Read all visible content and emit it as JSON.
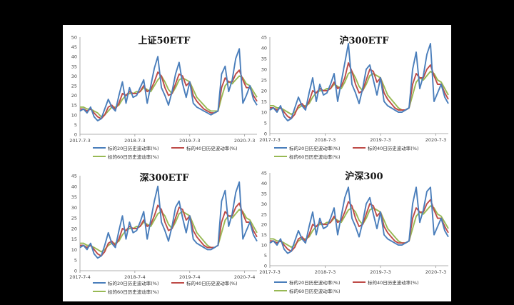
{
  "chart_data": [
    {
      "type": "line",
      "title": "上证50ETF",
      "yticks": [
        "0",
        "5",
        "10",
        "15",
        "20",
        "25",
        "30",
        "35",
        "40",
        "45",
        "50"
      ],
      "ylim": [
        0,
        50
      ],
      "xticks": [
        "2017-7-3",
        "2018-7-3",
        "2019-7-3",
        "2020-7-3"
      ],
      "legend": [
        "标的20日历史波动率(%)",
        "标的40日历史波动率(%)",
        "标的60日历史波动率(%)"
      ],
      "colors": [
        "#4a7ebb",
        "#be4b48",
        "#98b954"
      ],
      "series": [
        {
          "name": "标的20日历史波动率(%)",
          "values": [
            12,
            13,
            11,
            14,
            9,
            7,
            8,
            13,
            18,
            14,
            12,
            20,
            27,
            16,
            24,
            19,
            20,
            24,
            28,
            16,
            25,
            34,
            40,
            24,
            20,
            15,
            22,
            31,
            37,
            26,
            19,
            27,
            16,
            14,
            13,
            12,
            11,
            10,
            11,
            12,
            31,
            35,
            22,
            28,
            39,
            44,
            16,
            20,
            25,
            18,
            15
          ]
        },
        {
          "name": "标的40日历史波动率(%)",
          "values": [
            13,
            13,
            12,
            13,
            11,
            9,
            8,
            10,
            14,
            15,
            13,
            16,
            21,
            20,
            22,
            21,
            21,
            22,
            25,
            22,
            23,
            27,
            32,
            30,
            24,
            20,
            21,
            26,
            31,
            30,
            25,
            27,
            20,
            17,
            15,
            13,
            12,
            11,
            11,
            12,
            24,
            29,
            27,
            27,
            31,
            33,
            28,
            24,
            24,
            20,
            17
          ]
        },
        {
          "name": "标的60日历史波动率(%)",
          "values": [
            14,
            14,
            13,
            13,
            12,
            11,
            9,
            10,
            12,
            14,
            14,
            15,
            18,
            20,
            21,
            21,
            22,
            22,
            24,
            23,
            22,
            25,
            28,
            30,
            27,
            23,
            21,
            24,
            28,
            29,
            28,
            27,
            23,
            19,
            17,
            15,
            13,
            12,
            12,
            12,
            19,
            25,
            27,
            26,
            28,
            30,
            29,
            26,
            25,
            22,
            19
          ]
        }
      ]
    },
    {
      "type": "line",
      "title": "沪300ETF",
      "yticks": [
        "0",
        "5",
        "10",
        "15",
        "20",
        "25",
        "30",
        "35",
        "40",
        "45"
      ],
      "ylim": [
        0,
        45
      ],
      "xticks": [
        "2017-7-3",
        "2018-7-3",
        "2019-7-3",
        "2020-7-3"
      ],
      "legend": [
        "标的20日历史波动率(%)",
        "标的40日历史波动率(%)",
        "标的60日历史波动率(%)"
      ],
      "colors": [
        "#4a7ebb",
        "#be4b48",
        "#98b954"
      ],
      "series": [
        {
          "name": "标的20日历史波动率(%)",
          "values": [
            11,
            12,
            10,
            13,
            8,
            6,
            7,
            12,
            17,
            13,
            11,
            19,
            26,
            15,
            23,
            18,
            19,
            23,
            28,
            15,
            24,
            33,
            42,
            23,
            19,
            14,
            21,
            30,
            32,
            25,
            18,
            26,
            15,
            13,
            12,
            11,
            10,
            10,
            11,
            12,
            30,
            38,
            21,
            27,
            37,
            42,
            15,
            19,
            23,
            17,
            14
          ]
        },
        {
          "name": "标的40日历史波动率(%)",
          "values": [
            12,
            12,
            11,
            12,
            10,
            8,
            7,
            9,
            13,
            14,
            12,
            15,
            20,
            19,
            21,
            20,
            20,
            21,
            24,
            21,
            22,
            26,
            33,
            29,
            23,
            19,
            20,
            25,
            30,
            29,
            24,
            26,
            19,
            16,
            14,
            12,
            11,
            11,
            11,
            12,
            23,
            28,
            26,
            26,
            30,
            32,
            27,
            23,
            23,
            19,
            16
          ]
        },
        {
          "name": "标的60日历史波动率(%)",
          "values": [
            13,
            13,
            12,
            12,
            11,
            10,
            9,
            10,
            12,
            13,
            13,
            14,
            17,
            19,
            20,
            20,
            21,
            21,
            23,
            22,
            21,
            24,
            28,
            29,
            26,
            22,
            20,
            23,
            27,
            28,
            27,
            26,
            22,
            18,
            16,
            14,
            12,
            11,
            11,
            12,
            18,
            24,
            26,
            25,
            27,
            29,
            28,
            25,
            24,
            21,
            18
          ]
        }
      ]
    },
    {
      "type": "line",
      "title": "深300ETF",
      "yticks": [
        "0",
        "5",
        "10",
        "15",
        "20",
        "25",
        "30",
        "35",
        "40",
        "45"
      ],
      "ylim": [
        0,
        45
      ],
      "xticks": [
        "2017-7-4",
        "2018-7-4",
        "2019-7-4",
        "2020-7-4"
      ],
      "legend": [
        "标的20日历史波动率(%)",
        "标的40日历史波动率(%)",
        "标的60日历史波动率(%)"
      ],
      "colors": [
        "#4a7ebb",
        "#be4b48",
        "#98b954"
      ],
      "series": [
        {
          "name": "标的20日历史波动率(%)",
          "values": [
            11,
            12,
            10,
            13,
            8,
            6,
            7,
            12,
            18,
            13,
            11,
            19,
            26,
            15,
            23,
            18,
            19,
            23,
            28,
            15,
            24,
            33,
            40,
            23,
            19,
            14,
            21,
            30,
            33,
            25,
            18,
            26,
            15,
            13,
            12,
            11,
            10,
            10,
            11,
            12,
            33,
            38,
            21,
            27,
            37,
            42,
            15,
            19,
            23,
            17,
            14
          ]
        },
        {
          "name": "标的40日历史波动率(%)",
          "values": [
            12,
            12,
            11,
            12,
            10,
            8,
            7,
            9,
            13,
            14,
            12,
            15,
            20,
            19,
            21,
            20,
            20,
            21,
            24,
            21,
            22,
            26,
            31,
            29,
            23,
            19,
            20,
            25,
            30,
            29,
            24,
            26,
            19,
            16,
            14,
            12,
            11,
            11,
            11,
            12,
            23,
            28,
            26,
            26,
            30,
            32,
            27,
            23,
            23,
            19,
            16
          ]
        },
        {
          "name": "标的60日历史波动率(%)",
          "values": [
            13,
            13,
            12,
            12,
            11,
            10,
            9,
            10,
            12,
            13,
            13,
            14,
            17,
            19,
            20,
            20,
            21,
            21,
            23,
            22,
            21,
            24,
            27,
            28,
            26,
            22,
            20,
            23,
            27,
            28,
            27,
            26,
            22,
            18,
            16,
            14,
            12,
            11,
            11,
            12,
            18,
            24,
            26,
            25,
            27,
            29,
            28,
            25,
            24,
            21,
            18
          ]
        }
      ]
    },
    {
      "type": "line",
      "title": "沪深300",
      "yticks": [
        "0",
        "5",
        "10",
        "15",
        "20",
        "25",
        "30",
        "35",
        "40",
        "45"
      ],
      "ylim": [
        0,
        45
      ],
      "xticks": [
        "2017-7-3",
        "2018-7-3",
        "2019-7-3",
        "2020-7-3"
      ],
      "legend": [
        "标的20日历史波动率(%)",
        "标的40日历史波动率(%)",
        "标的60日历史波动率(%)"
      ],
      "colors": [
        "#4a7ebb",
        "#be4b48",
        "#98b954"
      ],
      "series": [
        {
          "name": "标的20日历史波动率(%)",
          "values": [
            11,
            12,
            10,
            13,
            8,
            6,
            7,
            12,
            17,
            13,
            11,
            19,
            26,
            15,
            23,
            18,
            19,
            23,
            28,
            15,
            24,
            33,
            38,
            23,
            19,
            14,
            21,
            30,
            33,
            25,
            18,
            26,
            15,
            13,
            12,
            11,
            10,
            10,
            11,
            12,
            30,
            38,
            21,
            27,
            36,
            38,
            15,
            19,
            23,
            17,
            14
          ]
        },
        {
          "name": "标的40日历史波动率(%)",
          "values": [
            12,
            12,
            11,
            12,
            10,
            8,
            7,
            9,
            13,
            14,
            12,
            15,
            20,
            19,
            21,
            20,
            20,
            21,
            24,
            21,
            22,
            26,
            31,
            29,
            23,
            19,
            20,
            25,
            30,
            29,
            24,
            26,
            19,
            16,
            14,
            12,
            11,
            11,
            11,
            12,
            23,
            28,
            26,
            26,
            30,
            32,
            27,
            23,
            23,
            19,
            16
          ]
        },
        {
          "name": "标的60日历史波动率(%)",
          "values": [
            13,
            13,
            12,
            12,
            11,
            10,
            9,
            10,
            12,
            13,
            13,
            14,
            17,
            19,
            20,
            20,
            21,
            21,
            23,
            22,
            21,
            24,
            27,
            28,
            26,
            22,
            20,
            23,
            27,
            28,
            27,
            26,
            22,
            18,
            16,
            14,
            12,
            11,
            11,
            12,
            18,
            24,
            26,
            25,
            27,
            29,
            28,
            25,
            24,
            21,
            18
          ]
        }
      ]
    }
  ]
}
